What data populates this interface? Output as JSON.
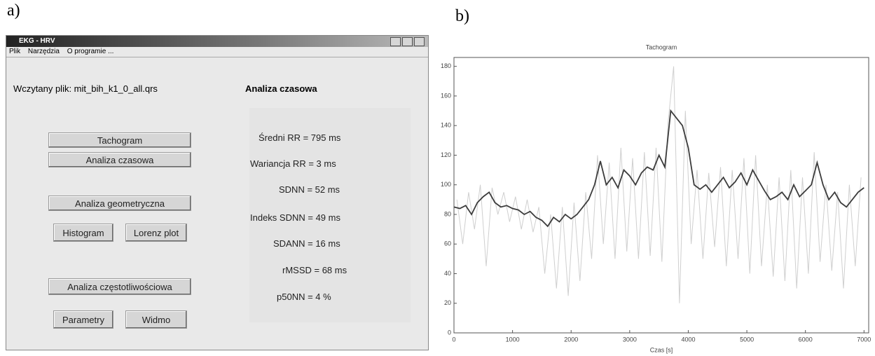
{
  "panels": {
    "a": "a)",
    "b": "b)"
  },
  "window": {
    "title": "EKG - HRV",
    "menu": [
      "Plik",
      "Narzędzia",
      "O programie ..."
    ],
    "loaded_file": "Wczytany plik: mit_bih_k1_0_all.qrs",
    "buttons": [
      "Tachogram",
      "Analiza czasowa",
      "Analiza geometryczna",
      "Histogram",
      "Lorenz plot",
      "Analiza częstotliwościowa",
      "Parametry",
      "Widmo"
    ],
    "results": {
      "title": "Analiza czasowa",
      "items": [
        "Średni RR = 795 ms",
        "Wariancja RR = 3 ms",
        "SDNN = 52 ms",
        "Indeks SDNN = 49 ms",
        "SDANN = 16 ms",
        "rMSSD = 68 ms",
        "p50NN = 4 %"
      ]
    }
  },
  "chart_data": {
    "type": "line",
    "title": "Tachogram",
    "x_label": "Czas [s]",
    "xlim": [
      0,
      7080
    ],
    "ylim": [
      0,
      186
    ],
    "xticks": [
      0,
      1000,
      2000,
      3000,
      4000,
      5000,
      6000,
      7000
    ],
    "yticks": [
      0,
      20,
      40,
      60,
      80,
      100,
      120,
      140,
      160,
      180
    ],
    "series": [
      {
        "color": "#cfcfcf",
        "x": [
          50,
          150,
          250,
          350,
          450,
          550,
          650,
          750,
          850,
          950,
          1050,
          1150,
          1250,
          1350,
          1450,
          1550,
          1650,
          1750,
          1850,
          1950,
          2050,
          2150,
          2250,
          2350,
          2450,
          2550,
          2650,
          2750,
          2850,
          2950,
          3050,
          3150,
          3250,
          3350,
          3450,
          3550,
          3650,
          3750,
          3850,
          3950,
          4050,
          4150,
          4250,
          4350,
          4450,
          4550,
          4650,
          4750,
          4850,
          4950,
          5050,
          5150,
          5250,
          5350,
          5450,
          5550,
          5650,
          5750,
          5850,
          5950,
          6050,
          6150,
          6250,
          6350,
          6450,
          6550,
          6650,
          6750,
          6850,
          6950
        ],
        "values": [
          90,
          60,
          95,
          70,
          100,
          45,
          98,
          80,
          95,
          75,
          92,
          70,
          90,
          68,
          85,
          40,
          80,
          30,
          85,
          25,
          88,
          35,
          95,
          50,
          120,
          60,
          115,
          50,
          125,
          55,
          118,
          50,
          122,
          52,
          125,
          48,
          140,
          180,
          20,
          150,
          60,
          110,
          50,
          108,
          58,
          112,
          45,
          110,
          50,
          118,
          40,
          120,
          45,
          100,
          38,
          105,
          35,
          110,
          30,
          105,
          40,
          122,
          48,
          100,
          42,
          95,
          30,
          100,
          45,
          105
        ]
      },
      {
        "color": "#3c3c3c",
        "x": [
          0,
          100,
          200,
          300,
          400,
          500,
          600,
          700,
          800,
          900,
          1000,
          1100,
          1200,
          1300,
          1400,
          1500,
          1600,
          1700,
          1800,
          1900,
          2000,
          2100,
          2200,
          2300,
          2400,
          2500,
          2600,
          2700,
          2800,
          2900,
          3000,
          3100,
          3200,
          3300,
          3400,
          3500,
          3600,
          3700,
          3800,
          3900,
          4000,
          4100,
          4200,
          4300,
          4400,
          4500,
          4600,
          4700,
          4800,
          4900,
          5000,
          5100,
          5200,
          5300,
          5400,
          5500,
          5600,
          5700,
          5800,
          5900,
          6000,
          6100,
          6200,
          6300,
          6400,
          6500,
          6600,
          6700,
          6800,
          6900,
          7000
        ],
        "values": [
          85,
          84,
          86,
          80,
          88,
          92,
          95,
          88,
          85,
          86,
          84,
          83,
          80,
          82,
          78,
          76,
          72,
          78,
          75,
          80,
          77,
          80,
          85,
          90,
          100,
          116,
          100,
          105,
          98,
          110,
          106,
          100,
          108,
          112,
          110,
          120,
          112,
          150,
          145,
          140,
          125,
          100,
          97,
          100,
          95,
          100,
          105,
          98,
          102,
          108,
          100,
          110,
          103,
          96,
          90,
          92,
          95,
          90,
          100,
          92,
          96,
          100,
          115,
          100,
          90,
          95,
          88,
          85,
          90,
          95,
          98
        ]
      }
    ]
  }
}
